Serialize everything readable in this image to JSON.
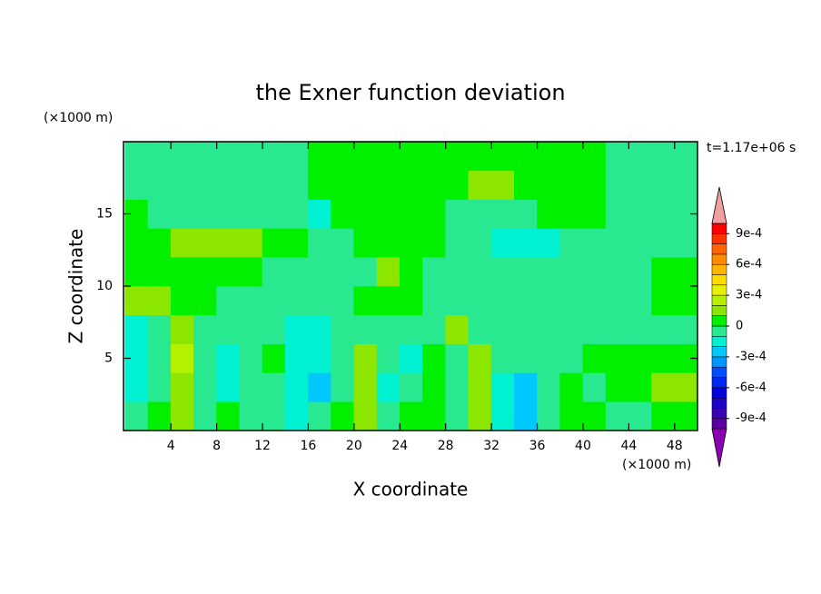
{
  "chart_data": {
    "type": "contour",
    "title": "the Exner function deviation",
    "xlabel": "X coordinate",
    "ylabel": "Z coordinate",
    "x_unit": "(×1000 m)",
    "y_unit": "(×1000 m)",
    "time_label": "t=1.17e+06 s",
    "xlim": [
      0,
      50
    ],
    "ylim": [
      0,
      20
    ],
    "xticks": [
      4,
      8,
      12,
      16,
      20,
      24,
      28,
      32,
      36,
      40,
      44,
      48
    ],
    "yticks": [
      5,
      10,
      15
    ],
    "x": [
      1,
      3,
      5,
      7,
      9,
      11,
      13,
      15,
      17,
      19,
      21,
      23,
      25,
      27,
      29,
      31,
      33,
      35,
      37,
      39,
      41,
      43,
      45,
      47,
      49
    ],
    "y": [
      1,
      3,
      5,
      7,
      9,
      11,
      13,
      15,
      17,
      19
    ],
    "z": [
      [
        -5e-05,
        5e-05,
        0.00015,
        -5e-05,
        5e-05,
        -5e-05,
        -5e-05,
        -0.00015,
        -5e-05,
        5e-05,
        0.00015,
        -5e-05,
        5e-05,
        5e-05,
        -5e-05,
        0.00015,
        -0.00015,
        -0.00025,
        -5e-05,
        5e-05,
        5e-05,
        -5e-05,
        -5e-05,
        5e-05,
        5e-05
      ],
      [
        -0.00015,
        -5e-05,
        0.00015,
        -5e-05,
        -0.00015,
        -5e-05,
        -5e-05,
        -0.00015,
        -0.00025,
        -5e-05,
        0.00015,
        -0.00015,
        -5e-05,
        5e-05,
        -5e-05,
        0.00015,
        -0.00015,
        -0.00025,
        -5e-05,
        5e-05,
        -5e-05,
        5e-05,
        5e-05,
        0.00015,
        0.00015
      ],
      [
        -0.00015,
        -5e-05,
        0.00025,
        -5e-05,
        -0.00015,
        -5e-05,
        5e-05,
        -0.00015,
        -0.00015,
        -5e-05,
        0.00015,
        -5e-05,
        -0.00015,
        5e-05,
        -5e-05,
        0.00015,
        -5e-05,
        -5e-05,
        -5e-05,
        -5e-05,
        5e-05,
        5e-05,
        5e-05,
        5e-05,
        5e-05
      ],
      [
        -0.00015,
        -5e-05,
        0.00015,
        -5e-05,
        -5e-05,
        -5e-05,
        -5e-05,
        -0.00015,
        -0.00015,
        -5e-05,
        -5e-05,
        -5e-05,
        -5e-05,
        -5e-05,
        0.00015,
        -5e-05,
        -5e-05,
        -5e-05,
        -5e-05,
        -5e-05,
        -5e-05,
        -5e-05,
        -5e-05,
        -5e-05,
        -5e-05
      ],
      [
        0.00015,
        0.00015,
        5e-05,
        5e-05,
        -5e-05,
        -5e-05,
        -5e-05,
        -5e-05,
        -5e-05,
        -5e-05,
        5e-05,
        5e-05,
        5e-05,
        -5e-05,
        -5e-05,
        -5e-05,
        -5e-05,
        -5e-05,
        -5e-05,
        -5e-05,
        -5e-05,
        -5e-05,
        -5e-05,
        5e-05,
        5e-05
      ],
      [
        5e-05,
        5e-05,
        5e-05,
        5e-05,
        5e-05,
        5e-05,
        -5e-05,
        -5e-05,
        -5e-05,
        -5e-05,
        -5e-05,
        0.00015,
        5e-05,
        -5e-05,
        -5e-05,
        -5e-05,
        -5e-05,
        -5e-05,
        -5e-05,
        -5e-05,
        -5e-05,
        -5e-05,
        -5e-05,
        5e-05,
        5e-05
      ],
      [
        5e-05,
        5e-05,
        0.00015,
        0.00015,
        0.00015,
        0.00015,
        5e-05,
        5e-05,
        -5e-05,
        -5e-05,
        5e-05,
        5e-05,
        5e-05,
        5e-05,
        -5e-05,
        -5e-05,
        -0.00015,
        -0.00015,
        -0.00015,
        -5e-05,
        -5e-05,
        -5e-05,
        -5e-05,
        -5e-05,
        -5e-05
      ],
      [
        5e-05,
        -5e-05,
        -5e-05,
        -5e-05,
        -5e-05,
        -5e-05,
        -5e-05,
        -5e-05,
        -0.00015,
        5e-05,
        5e-05,
        5e-05,
        5e-05,
        5e-05,
        -5e-05,
        -5e-05,
        -5e-05,
        -5e-05,
        5e-05,
        5e-05,
        5e-05,
        -5e-05,
        -5e-05,
        -5e-05,
        -5e-05
      ],
      [
        -5e-05,
        -5e-05,
        -5e-05,
        -5e-05,
        -5e-05,
        -5e-05,
        -5e-05,
        -5e-05,
        5e-05,
        5e-05,
        5e-05,
        5e-05,
        5e-05,
        5e-05,
        5e-05,
        0.00015,
        0.00015,
        5e-05,
        5e-05,
        5e-05,
        5e-05,
        -5e-05,
        -5e-05,
        -5e-05,
        -5e-05
      ],
      [
        -5e-05,
        -5e-05,
        -5e-05,
        -5e-05,
        -5e-05,
        -5e-05,
        -5e-05,
        -5e-05,
        5e-05,
        5e-05,
        5e-05,
        5e-05,
        5e-05,
        5e-05,
        5e-05,
        5e-05,
        5e-05,
        5e-05,
        5e-05,
        5e-05,
        5e-05,
        -5e-05,
        -5e-05,
        -5e-05,
        -5e-05
      ]
    ],
    "colorbar": {
      "levels": [
        -0.001,
        -0.0009,
        -0.0008,
        -0.0007,
        -0.0006,
        -0.0005,
        -0.0004,
        -0.0003,
        -0.0002,
        -0.0001,
        0,
        0.0001,
        0.0002,
        0.0003,
        0.0004,
        0.0005,
        0.0006,
        0.0007,
        0.0008,
        0.0009,
        0.001
      ],
      "colors": [
        "#5a00a0",
        "#3c00b4",
        "#1e00c8",
        "#0000dc",
        "#0028f0",
        "#0050ff",
        "#0096ff",
        "#00c8ff",
        "#00f0d2",
        "#28e890",
        "#00f000",
        "#8ce600",
        "#b4f000",
        "#e6f000",
        "#ffdc00",
        "#ffb400",
        "#ff8c00",
        "#ff6400",
        "#ff3200",
        "#ff0000"
      ],
      "under_color": "#8c00b4",
      "over_color": "#f0a0a0",
      "ticks": [
        {
          "value": -0.0009,
          "label": "-9e-4"
        },
        {
          "value": -0.0006,
          "label": "-6e-4"
        },
        {
          "value": -0.0003,
          "label": "-3e-4"
        },
        0,
        {
          "value": 0.0003,
          "label": "3e-4"
        },
        {
          "value": 0.0006,
          "label": "6e-4"
        },
        {
          "value": 0.0009,
          "label": "9e-4"
        }
      ]
    }
  }
}
